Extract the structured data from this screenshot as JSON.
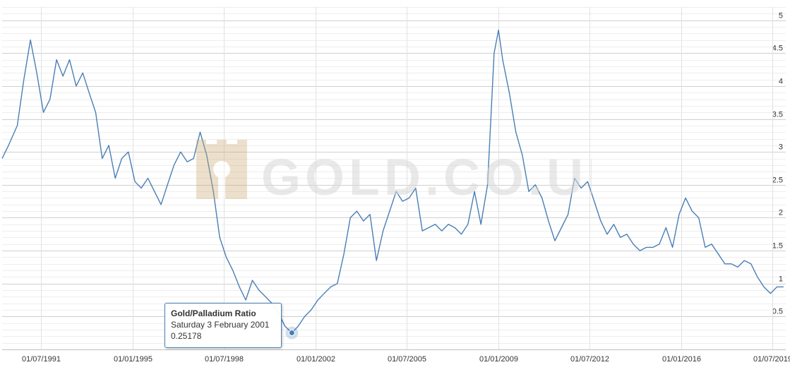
{
  "chart_data": {
    "type": "line",
    "title": "",
    "xlabel": "",
    "ylabel": "",
    "ylim": [
      0,
      5.2
    ],
    "xlim": [
      "1990-01-01",
      "2020-01-01"
    ],
    "grid": true,
    "y_ticks": [
      "0.5",
      "1",
      "1.5",
      "2",
      "2.5",
      "3",
      "3.5",
      "4",
      "4.5",
      "5"
    ],
    "x_ticks": [
      {
        "label": "01/07/1991",
        "date": "1991-07-01"
      },
      {
        "label": "01/01/1995",
        "date": "1995-01-01"
      },
      {
        "label": "01/07/1998",
        "date": "1998-07-01"
      },
      {
        "label": "01/01/2002",
        "date": "2002-01-01"
      },
      {
        "label": "01/07/2005",
        "date": "2005-07-01"
      },
      {
        "label": "01/01/2009",
        "date": "2009-01-01"
      },
      {
        "label": "01/07/2012",
        "date": "2012-07-01"
      },
      {
        "label": "01/01/2016",
        "date": "2016-01-01"
      },
      {
        "label": "01/07/2019",
        "date": "2019-07-01"
      }
    ],
    "series": [
      {
        "name": "Gold/Palladium Ratio",
        "color": "#4a7fb5",
        "points": [
          [
            "1990-01-01",
            2.9
          ],
          [
            "1990-04-01",
            3.1
          ],
          [
            "1990-08-01",
            3.4
          ],
          [
            "1990-11-01",
            4.1
          ],
          [
            "1991-02-01",
            4.7
          ],
          [
            "1991-05-01",
            4.2
          ],
          [
            "1991-08-01",
            3.6
          ],
          [
            "1991-11-01",
            3.8
          ],
          [
            "1992-02-01",
            4.4
          ],
          [
            "1992-05-01",
            4.15
          ],
          [
            "1992-08-01",
            4.4
          ],
          [
            "1992-11-01",
            4.0
          ],
          [
            "1993-02-01",
            4.2
          ],
          [
            "1993-05-01",
            3.9
          ],
          [
            "1993-08-01",
            3.6
          ],
          [
            "1993-11-01",
            2.9
          ],
          [
            "1994-02-01",
            3.1
          ],
          [
            "1994-05-01",
            2.6
          ],
          [
            "1994-08-01",
            2.9
          ],
          [
            "1994-11-01",
            3.0
          ],
          [
            "1995-02-01",
            2.55
          ],
          [
            "1995-05-01",
            2.45
          ],
          [
            "1995-08-01",
            2.6
          ],
          [
            "1995-11-01",
            2.4
          ],
          [
            "1996-02-01",
            2.2
          ],
          [
            "1996-05-01",
            2.5
          ],
          [
            "1996-08-01",
            2.8
          ],
          [
            "1996-11-01",
            3.0
          ],
          [
            "1997-02-01",
            2.85
          ],
          [
            "1997-05-01",
            2.9
          ],
          [
            "1997-08-01",
            3.3
          ],
          [
            "1997-11-01",
            2.95
          ],
          [
            "1998-02-01",
            2.4
          ],
          [
            "1998-05-01",
            1.7
          ],
          [
            "1998-08-01",
            1.4
          ],
          [
            "1998-11-01",
            1.2
          ],
          [
            "1999-02-01",
            0.95
          ],
          [
            "1999-05-01",
            0.75
          ],
          [
            "1999-08-01",
            1.05
          ],
          [
            "1999-11-01",
            0.9
          ],
          [
            "2000-02-01",
            0.8
          ],
          [
            "2000-05-01",
            0.7
          ],
          [
            "2000-08-01",
            0.55
          ],
          [
            "2000-11-01",
            0.35
          ],
          [
            "2001-02-03",
            0.25178
          ],
          [
            "2001-05-01",
            0.35
          ],
          [
            "2001-08-01",
            0.5
          ],
          [
            "2001-11-01",
            0.6
          ],
          [
            "2002-02-01",
            0.75
          ],
          [
            "2002-05-01",
            0.85
          ],
          [
            "2002-08-01",
            0.95
          ],
          [
            "2002-11-01",
            1.0
          ],
          [
            "2003-02-01",
            1.45
          ],
          [
            "2003-05-01",
            2.0
          ],
          [
            "2003-08-01",
            2.1
          ],
          [
            "2003-11-01",
            1.95
          ],
          [
            "2004-02-01",
            2.05
          ],
          [
            "2004-05-01",
            1.35
          ],
          [
            "2004-08-01",
            1.8
          ],
          [
            "2004-11-01",
            2.1
          ],
          [
            "2005-02-01",
            2.4
          ],
          [
            "2005-05-01",
            2.25
          ],
          [
            "2005-08-01",
            2.3
          ],
          [
            "2005-11-01",
            2.45
          ],
          [
            "2006-02-01",
            1.8
          ],
          [
            "2006-05-01",
            1.85
          ],
          [
            "2006-08-01",
            1.9
          ],
          [
            "2006-11-01",
            1.8
          ],
          [
            "2007-02-01",
            1.9
          ],
          [
            "2007-05-01",
            1.85
          ],
          [
            "2007-08-01",
            1.75
          ],
          [
            "2007-11-01",
            1.9
          ],
          [
            "2008-02-01",
            2.4
          ],
          [
            "2008-05-01",
            1.9
          ],
          [
            "2008-08-01",
            2.5
          ],
          [
            "2008-11-01",
            4.5
          ],
          [
            "2009-01-01",
            4.85
          ],
          [
            "2009-03-01",
            4.4
          ],
          [
            "2009-06-01",
            3.9
          ],
          [
            "2009-09-01",
            3.3
          ],
          [
            "2009-12-01",
            2.95
          ],
          [
            "2010-03-01",
            2.4
          ],
          [
            "2010-06-01",
            2.5
          ],
          [
            "2010-09-01",
            2.3
          ],
          [
            "2010-12-01",
            1.95
          ],
          [
            "2011-03-01",
            1.65
          ],
          [
            "2011-06-01",
            1.85
          ],
          [
            "2011-09-01",
            2.05
          ],
          [
            "2011-12-01",
            2.6
          ],
          [
            "2012-03-01",
            2.45
          ],
          [
            "2012-06-01",
            2.55
          ],
          [
            "2012-09-01",
            2.25
          ],
          [
            "2012-12-01",
            1.95
          ],
          [
            "2013-03-01",
            1.75
          ],
          [
            "2013-06-01",
            1.9
          ],
          [
            "2013-09-01",
            1.7
          ],
          [
            "2013-12-01",
            1.75
          ],
          [
            "2014-03-01",
            1.6
          ],
          [
            "2014-06-01",
            1.5
          ],
          [
            "2014-09-01",
            1.55
          ],
          [
            "2014-12-01",
            1.55
          ],
          [
            "2015-03-01",
            1.6
          ],
          [
            "2015-06-01",
            1.85
          ],
          [
            "2015-09-01",
            1.55
          ],
          [
            "2015-12-01",
            2.05
          ],
          [
            "2016-03-01",
            2.3
          ],
          [
            "2016-06-01",
            2.1
          ],
          [
            "2016-09-01",
            2.0
          ],
          [
            "2016-12-01",
            1.55
          ],
          [
            "2017-03-01",
            1.6
          ],
          [
            "2017-06-01",
            1.45
          ],
          [
            "2017-09-01",
            1.3
          ],
          [
            "2017-12-01",
            1.3
          ],
          [
            "2018-03-01",
            1.25
          ],
          [
            "2018-06-01",
            1.35
          ],
          [
            "2018-09-01",
            1.3
          ],
          [
            "2018-12-01",
            1.1
          ],
          [
            "2019-03-01",
            0.95
          ],
          [
            "2019-06-01",
            0.85
          ],
          [
            "2019-09-01",
            0.95
          ],
          [
            "2019-12-01",
            0.95
          ]
        ]
      }
    ],
    "tooltip": {
      "title": "Gold/Palladium Ratio",
      "date": "Saturday 3 February 2001",
      "value": "0.25178",
      "point": [
        "2001-02-03",
        0.25178
      ]
    },
    "watermark": "GOLD.CO.UK"
  }
}
